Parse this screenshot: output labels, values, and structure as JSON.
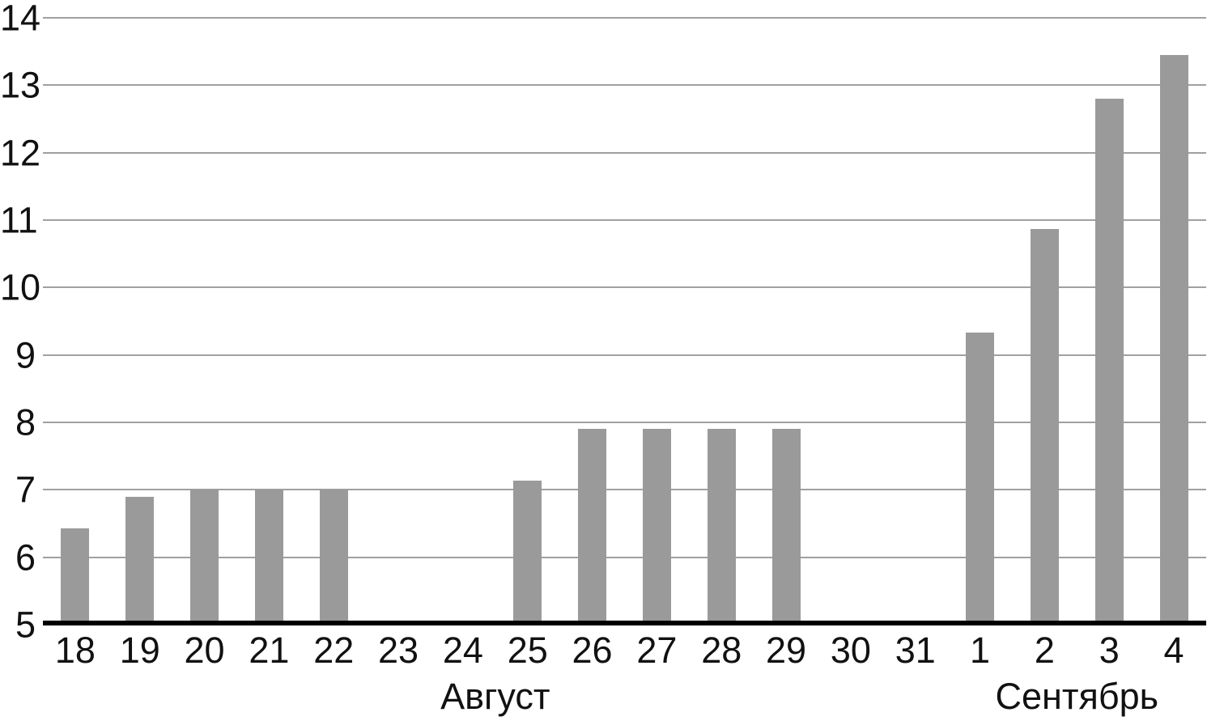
{
  "chart_data": {
    "type": "bar",
    "title": "",
    "xlabel": "",
    "ylabel": "",
    "categories": [
      "18",
      "19",
      "20",
      "21",
      "22",
      "23",
      "24",
      "25",
      "26",
      "27",
      "28",
      "29",
      "30",
      "31",
      "1",
      "2",
      "3",
      "4"
    ],
    "values": [
      6.43,
      6.9,
      7.0,
      7.0,
      7.0,
      null,
      null,
      7.14,
      7.9,
      7.9,
      7.9,
      7.9,
      null,
      null,
      9.33,
      10.87,
      12.8,
      13.45
    ],
    "x_group_labels": [
      {
        "label": "Август",
        "start_index": 0,
        "end_index": 13
      },
      {
        "label": "Сентябрь",
        "start_index": 14,
        "end_index": 17
      }
    ],
    "yticks": [
      5,
      6,
      7,
      8,
      9,
      10,
      11,
      12,
      13,
      14
    ],
    "ylim": [
      5,
      14
    ],
    "grid": "horizontal",
    "legend": "none",
    "colors": {
      "bar": "#9a9a9a",
      "gridline": "#a0a0a0",
      "axis": "#000000",
      "text": "#111111",
      "background": "#ffffff"
    }
  }
}
